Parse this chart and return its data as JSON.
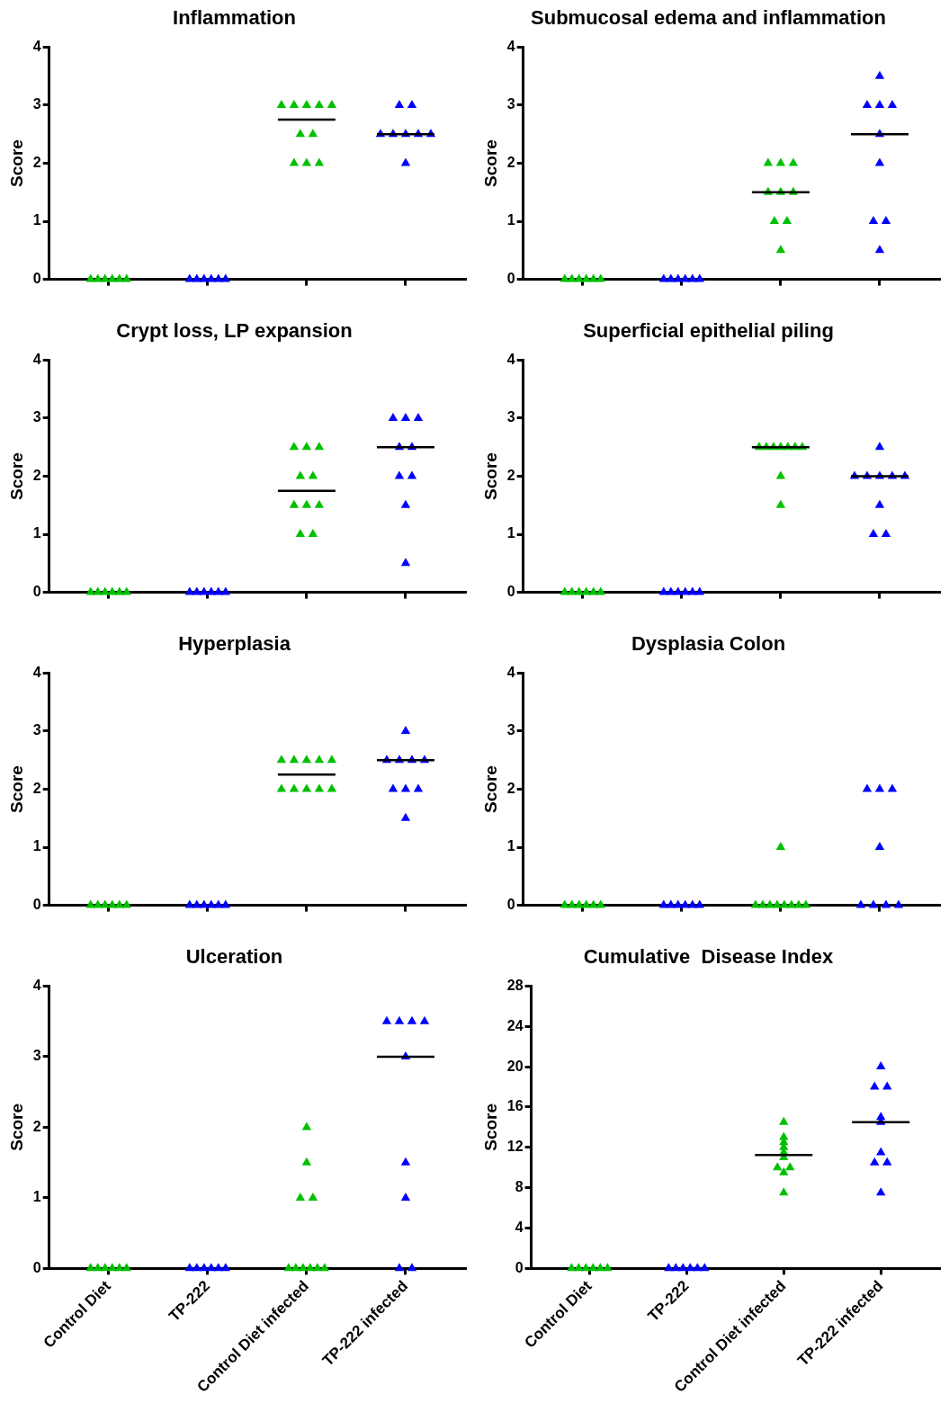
{
  "chart_data": [
    {
      "type": "scatter",
      "title": "Inflammation",
      "ylabel": "Score",
      "categories": [
        "Control Diet",
        "TP-222",
        "Control Diet infected",
        "TP-222 infected"
      ],
      "ylim": [
        0,
        4
      ],
      "yticks": [
        0,
        1,
        2,
        3,
        4
      ],
      "grid": false,
      "legend": false,
      "marker": "triangle",
      "tick_labels": "y",
      "series": [
        {
          "color": "#00c000",
          "x": [
            "Control Diet",
            "Control Diet",
            "Control Diet",
            "Control Diet",
            "Control Diet",
            "Control Diet",
            "Control Diet infected",
            "Control Diet infected",
            "Control Diet infected",
            "Control Diet infected",
            "Control Diet infected",
            "Control Diet infected",
            "Control Diet infected",
            "Control Diet infected",
            "Control Diet infected",
            "Control Diet infected"
          ],
          "values": [
            0,
            0,
            0,
            0,
            0,
            0,
            3,
            3,
            3,
            3,
            3,
            2.5,
            2.5,
            2,
            2,
            2
          ]
        },
        {
          "color": "#0000ff",
          "x": [
            "TP-222",
            "TP-222",
            "TP-222",
            "TP-222",
            "TP-222",
            "TP-222",
            "TP-222 infected",
            "TP-222 infected",
            "TP-222 infected",
            "TP-222 infected",
            "TP-222 infected",
            "TP-222 infected",
            "TP-222 infected",
            "TP-222 infected"
          ],
          "values": [
            0,
            0,
            0,
            0,
            0,
            0,
            3,
            3,
            2.5,
            2.5,
            2.5,
            2.5,
            2.5,
            2
          ]
        },
        {
          "type": "box",
          "color": "#000000",
          "boxes": [
            null,
            null,
            {
              "low": 2.75,
              "q1": 2.75,
              "median": 2.75,
              "q3": 2.75,
              "high": 2.75
            },
            {
              "low": 2.5,
              "q1": 2.5,
              "median": 2.5,
              "q3": 2.5,
              "high": 2.5
            }
          ]
        }
      ]
    },
    {
      "type": "scatter",
      "title": "Submucosal edema and inflammation",
      "ylabel": "Score",
      "categories": [
        "Control Diet",
        "TP-222",
        "Control Diet infected",
        "TP-222 infected"
      ],
      "ylim": [
        0,
        4
      ],
      "yticks": [
        0,
        1,
        2,
        3,
        4
      ],
      "grid": false,
      "legend": false,
      "marker": "triangle",
      "tick_labels": "y",
      "series": [
        {
          "color": "#00c000",
          "x": [
            "Control Diet",
            "Control Diet",
            "Control Diet",
            "Control Diet",
            "Control Diet",
            "Control Diet",
            "Control Diet infected",
            "Control Diet infected",
            "Control Diet infected",
            "Control Diet infected",
            "Control Diet infected",
            "Control Diet infected",
            "Control Diet infected",
            "Control Diet infected",
            "Control Diet infected"
          ],
          "values": [
            0,
            0,
            0,
            0,
            0,
            0,
            2,
            2,
            2,
            1.5,
            1.5,
            1.5,
            1,
            1,
            0.5
          ]
        },
        {
          "color": "#0000ff",
          "x": [
            "TP-222",
            "TP-222",
            "TP-222",
            "TP-222",
            "TP-222",
            "TP-222",
            "TP-222 infected",
            "TP-222 infected",
            "TP-222 infected",
            "TP-222 infected",
            "TP-222 infected",
            "TP-222 infected",
            "TP-222 infected",
            "TP-222 infected",
            "TP-222 infected"
          ],
          "values": [
            0,
            0,
            0,
            0,
            0,
            0,
            3.5,
            3,
            3,
            3,
            2.5,
            2,
            1,
            1,
            0.5
          ]
        },
        {
          "type": "box",
          "color": "#000000",
          "boxes": [
            null,
            null,
            {
              "low": 1.5,
              "q1": 1.5,
              "median": 1.5,
              "q3": 1.5,
              "high": 1.5
            },
            {
              "low": 2.5,
              "q1": 2.5,
              "median": 2.5,
              "q3": 2.5,
              "high": 2.5
            }
          ]
        }
      ]
    },
    {
      "type": "scatter",
      "title": "Crypt loss, LP expansion",
      "ylabel": "Score",
      "categories": [
        "Control Diet",
        "TP-222",
        "Control Diet infected",
        "TP-222 infected"
      ],
      "ylim": [
        0,
        4
      ],
      "yticks": [
        0,
        1,
        2,
        3,
        4
      ],
      "grid": false,
      "legend": false,
      "marker": "triangle",
      "tick_labels": "y",
      "series": [
        {
          "color": "#00c000",
          "x": [
            "Control Diet",
            "Control Diet",
            "Control Diet",
            "Control Diet",
            "Control Diet",
            "Control Diet",
            "Control Diet infected",
            "Control Diet infected",
            "Control Diet infected",
            "Control Diet infected",
            "Control Diet infected",
            "Control Diet infected",
            "Control Diet infected",
            "Control Diet infected",
            "Control Diet infected",
            "Control Diet infected"
          ],
          "values": [
            0,
            0,
            0,
            0,
            0,
            0,
            2.5,
            2.5,
            2.5,
            2,
            2,
            1.5,
            1.5,
            1.5,
            1,
            1
          ]
        },
        {
          "color": "#0000ff",
          "x": [
            "TP-222",
            "TP-222",
            "TP-222",
            "TP-222",
            "TP-222",
            "TP-222",
            "TP-222 infected",
            "TP-222 infected",
            "TP-222 infected",
            "TP-222 infected",
            "TP-222 infected",
            "TP-222 infected",
            "TP-222 infected",
            "TP-222 infected",
            "TP-222 infected"
          ],
          "values": [
            0,
            0,
            0,
            0,
            0,
            0,
            3,
            3,
            3,
            2.5,
            2.5,
            2,
            2,
            1.5,
            0.5
          ]
        },
        {
          "type": "box",
          "color": "#000000",
          "boxes": [
            null,
            null,
            {
              "low": 1.75,
              "q1": 1.75,
              "median": 1.75,
              "q3": 1.75,
              "high": 1.75
            },
            {
              "low": 2.5,
              "q1": 2.5,
              "median": 2.5,
              "q3": 2.5,
              "high": 2.5
            }
          ]
        }
      ]
    },
    {
      "type": "scatter",
      "title": "Superficial epithelial piling",
      "ylabel": "Score",
      "categories": [
        "Control Diet",
        "TP-222",
        "Control Diet infected",
        "TP-222 infected"
      ],
      "ylim": [
        0,
        4
      ],
      "yticks": [
        0,
        1,
        2,
        3,
        4
      ],
      "grid": false,
      "legend": false,
      "marker": "triangle",
      "tick_labels": "y",
      "series": [
        {
          "color": "#00c000",
          "x": [
            "Control Diet",
            "Control Diet",
            "Control Diet",
            "Control Diet",
            "Control Diet",
            "Control Diet",
            "Control Diet infected",
            "Control Diet infected",
            "Control Diet infected",
            "Control Diet infected",
            "Control Diet infected",
            "Control Diet infected",
            "Control Diet infected",
            "Control Diet infected",
            "Control Diet infected"
          ],
          "values": [
            0,
            0,
            0,
            0,
            0,
            0,
            2.5,
            2.5,
            2.5,
            2.5,
            2.5,
            2.5,
            2.5,
            2,
            1.5
          ]
        },
        {
          "color": "#0000ff",
          "x": [
            "TP-222",
            "TP-222",
            "TP-222",
            "TP-222",
            "TP-222",
            "TP-222",
            "TP-222 infected",
            "TP-222 infected",
            "TP-222 infected",
            "TP-222 infected",
            "TP-222 infected",
            "TP-222 infected",
            "TP-222 infected",
            "TP-222 infected",
            "TP-222 infected"
          ],
          "values": [
            0,
            0,
            0,
            0,
            0,
            0,
            2.5,
            2,
            2,
            2,
            2,
            2,
            1.5,
            1,
            1
          ]
        },
        {
          "type": "box",
          "color": "#000000",
          "boxes": [
            null,
            null,
            {
              "low": 2.5,
              "q1": 2.5,
              "median": 2.5,
              "q3": 2.5,
              "high": 2.5
            },
            {
              "low": 2,
              "q1": 2,
              "median": 2,
              "q3": 2,
              "high": 2
            }
          ]
        }
      ]
    },
    {
      "type": "scatter",
      "title": "Hyperplasia",
      "ylabel": "Score",
      "categories": [
        "Control Diet",
        "TP-222",
        "Control Diet infected",
        "TP-222 infected"
      ],
      "ylim": [
        0,
        4
      ],
      "yticks": [
        0,
        1,
        2,
        3,
        4
      ],
      "grid": false,
      "legend": false,
      "marker": "triangle",
      "tick_labels": "y",
      "series": [
        {
          "color": "#00c000",
          "x": [
            "Control Diet",
            "Control Diet",
            "Control Diet",
            "Control Diet",
            "Control Diet",
            "Control Diet",
            "Control Diet infected",
            "Control Diet infected",
            "Control Diet infected",
            "Control Diet infected",
            "Control Diet infected",
            "Control Diet infected",
            "Control Diet infected",
            "Control Diet infected",
            "Control Diet infected",
            "Control Diet infected"
          ],
          "values": [
            0,
            0,
            0,
            0,
            0,
            0,
            2.5,
            2.5,
            2.5,
            2.5,
            2.5,
            2,
            2,
            2,
            2,
            2
          ]
        },
        {
          "color": "#0000ff",
          "x": [
            "TP-222",
            "TP-222",
            "TP-222",
            "TP-222",
            "TP-222",
            "TP-222",
            "TP-222 infected",
            "TP-222 infected",
            "TP-222 infected",
            "TP-222 infected",
            "TP-222 infected",
            "TP-222 infected",
            "TP-222 infected",
            "TP-222 infected",
            "TP-222 infected"
          ],
          "values": [
            0,
            0,
            0,
            0,
            0,
            0,
            3,
            2.5,
            2.5,
            2.5,
            2.5,
            2,
            2,
            2,
            1.5
          ]
        },
        {
          "type": "box",
          "color": "#000000",
          "boxes": [
            null,
            null,
            {
              "low": 2.25,
              "q1": 2.25,
              "median": 2.25,
              "q3": 2.25,
              "high": 2.25
            },
            {
              "low": 2.5,
              "q1": 2.5,
              "median": 2.5,
              "q3": 2.5,
              "high": 2.5
            }
          ]
        }
      ]
    },
    {
      "type": "scatter",
      "title": "Dysplasia Colon",
      "ylabel": "Score",
      "categories": [
        "Control Diet",
        "TP-222",
        "Control Diet infected",
        "TP-222 infected"
      ],
      "ylim": [
        0,
        4
      ],
      "yticks": [
        0,
        1,
        2,
        3,
        4
      ],
      "grid": false,
      "legend": false,
      "marker": "triangle",
      "tick_labels": "y",
      "series": [
        {
          "color": "#00c000",
          "x": [
            "Control Diet",
            "Control Diet",
            "Control Diet",
            "Control Diet",
            "Control Diet",
            "Control Diet",
            "Control Diet infected",
            "Control Diet infected",
            "Control Diet infected",
            "Control Diet infected",
            "Control Diet infected",
            "Control Diet infected",
            "Control Diet infected",
            "Control Diet infected",
            "Control Diet infected"
          ],
          "values": [
            0,
            0,
            0,
            0,
            0,
            0,
            1,
            0,
            0,
            0,
            0,
            0,
            0,
            0,
            0
          ]
        },
        {
          "color": "#0000ff",
          "x": [
            "TP-222",
            "TP-222",
            "TP-222",
            "TP-222",
            "TP-222",
            "TP-222",
            "TP-222 infected",
            "TP-222 infected",
            "TP-222 infected",
            "TP-222 infected",
            "TP-222 infected",
            "TP-222 infected",
            "TP-222 infected",
            "TP-222 infected"
          ],
          "values": [
            0,
            0,
            0,
            0,
            0,
            0,
            2,
            2,
            2,
            1,
            0,
            0,
            0,
            0
          ]
        }
      ]
    },
    {
      "type": "scatter",
      "title": "Ulceration",
      "ylabel": "Score",
      "categories": [
        "Control Diet",
        "TP-222",
        "Control Diet infected",
        "TP-222 infected"
      ],
      "ylim": [
        0,
        4
      ],
      "yticks": [
        0,
        1,
        2,
        3,
        4
      ],
      "grid": false,
      "legend": false,
      "marker": "triangle",
      "series": [
        {
          "color": "#00c000",
          "x": [
            "Control Diet",
            "Control Diet",
            "Control Diet",
            "Control Diet",
            "Control Diet",
            "Control Diet",
            "Control Diet infected",
            "Control Diet infected",
            "Control Diet infected",
            "Control Diet infected",
            "Control Diet infected",
            "Control Diet infected",
            "Control Diet infected",
            "Control Diet infected",
            "Control Diet infected",
            "Control Diet infected"
          ],
          "values": [
            0,
            0,
            0,
            0,
            0,
            0,
            2,
            1.5,
            1,
            1,
            0,
            0,
            0,
            0,
            0,
            0
          ]
        },
        {
          "color": "#0000ff",
          "x": [
            "TP-222",
            "TP-222",
            "TP-222",
            "TP-222",
            "TP-222",
            "TP-222",
            "TP-222 infected",
            "TP-222 infected",
            "TP-222 infected",
            "TP-222 infected",
            "TP-222 infected",
            "TP-222 infected",
            "TP-222 infected",
            "TP-222 infected",
            "TP-222 infected"
          ],
          "values": [
            0,
            0,
            0,
            0,
            0,
            0,
            3.5,
            3.5,
            3.5,
            3.5,
            3,
            1.5,
            1,
            0,
            0
          ]
        },
        {
          "type": "box",
          "color": "#000000",
          "boxes": [
            null,
            null,
            null,
            {
              "low": 3,
              "q1": 3,
              "median": 3,
              "q3": 3,
              "high": 3
            }
          ]
        }
      ]
    },
    {
      "type": "scatter",
      "title": "Cumulative  Disease Index",
      "ylabel": "Score",
      "categories": [
        "Control Diet",
        "TP-222",
        "Control Diet infected",
        "TP-222 infected"
      ],
      "ylim": [
        0,
        28
      ],
      "yticks": [
        0,
        4,
        8,
        12,
        16,
        20,
        24,
        28
      ],
      "grid": false,
      "legend": false,
      "marker": "triangle",
      "series": [
        {
          "color": "#00c000",
          "x": [
            "Control Diet",
            "Control Diet",
            "Control Diet",
            "Control Diet",
            "Control Diet",
            "Control Diet",
            "Control Diet infected",
            "Control Diet infected",
            "Control Diet infected",
            "Control Diet infected",
            "Control Diet infected",
            "Control Diet infected",
            "Control Diet infected",
            "Control Diet infected",
            "Control Diet infected",
            "Control Diet infected"
          ],
          "values": [
            0,
            0,
            0,
            0,
            0,
            0,
            14.5,
            13,
            12.5,
            12,
            11.5,
            11,
            10,
            10,
            9.5,
            7.5
          ]
        },
        {
          "color": "#0000ff",
          "x": [
            "TP-222",
            "TP-222",
            "TP-222",
            "TP-222",
            "TP-222",
            "TP-222",
            "TP-222 infected",
            "TP-222 infected",
            "TP-222 infected",
            "TP-222 infected",
            "TP-222 infected",
            "TP-222 infected",
            "TP-222 infected",
            "TP-222 infected",
            "TP-222 infected"
          ],
          "values": [
            0,
            0,
            0,
            0,
            0,
            0,
            20,
            18,
            18,
            15,
            14.5,
            11.5,
            10.5,
            10.5,
            7.5
          ]
        },
        {
          "type": "box",
          "color": "#000000",
          "boxes": [
            null,
            null,
            {
              "low": 11.25,
              "q1": 11.25,
              "median": 11.25,
              "q3": 11.25,
              "high": 11.25
            },
            {
              "low": 14.5,
              "q1": 14.5,
              "median": 14.5,
              "q3": 14.5,
              "high": 14.5
            }
          ]
        }
      ]
    }
  ]
}
